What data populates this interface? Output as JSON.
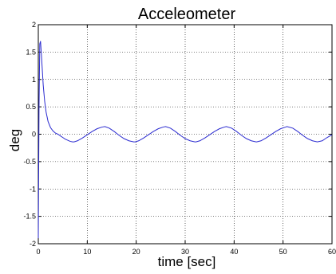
{
  "chart_data": {
    "type": "line",
    "title": "Acceleometer",
    "xlabel": "time [sec]",
    "ylabel": "deg",
    "xlim": [
      0,
      60
    ],
    "ylim": [
      -2,
      2
    ],
    "xticks": [
      "0",
      "10",
      "20",
      "30",
      "40",
      "50",
      "60"
    ],
    "yticks": [
      "2",
      "1.5",
      "1",
      "0.5",
      "0",
      "-0.5",
      "-1",
      "-1.5",
      "-2"
    ],
    "grid": true,
    "series_color": "#2b2bd0",
    "series": [
      {
        "x": [
          0,
          0.15,
          0.3,
          0.45,
          0.6,
          0.8,
          1.0,
          1.3,
          1.6,
          2.0,
          2.5,
          3.0,
          3.5,
          4.0,
          4.5,
          5.0,
          5.5,
          6.0,
          6.5,
          7.0,
          7.3,
          8.0,
          9.0,
          10.0,
          11.0,
          12.0,
          13.0,
          13.6,
          14.5,
          15.5,
          16.5,
          17.5,
          18.5,
          19.5,
          19.8,
          20.5,
          21.5,
          22.5,
          23.5,
          24.5,
          25.5,
          26.0,
          27.0,
          28.0,
          29.0,
          30.0,
          31.0,
          32.0,
          32.2,
          33.0,
          34.0,
          35.0,
          36.0,
          37.0,
          38.0,
          38.4,
          39.5,
          40.5,
          41.5,
          42.5,
          43.5,
          44.5,
          44.6,
          45.5,
          46.5,
          47.5,
          48.5,
          49.5,
          50.5,
          50.8,
          52.0,
          53.0,
          54.0,
          55.0,
          56.0,
          57.0,
          58.0,
          59.0,
          60.0
        ],
        "y": [
          -1.9,
          0.5,
          1.65,
          1.7,
          1.5,
          1.2,
          0.9,
          0.6,
          0.4,
          0.23,
          0.12,
          0.06,
          0.02,
          0.0,
          -0.03,
          -0.06,
          -0.09,
          -0.11,
          -0.13,
          -0.14,
          -0.14,
          -0.12,
          -0.07,
          -0.01,
          0.05,
          0.1,
          0.13,
          0.14,
          0.11,
          0.05,
          -0.02,
          -0.08,
          -0.12,
          -0.14,
          -0.14,
          -0.12,
          -0.07,
          -0.01,
          0.05,
          0.1,
          0.13,
          0.14,
          0.11,
          0.05,
          -0.02,
          -0.08,
          -0.12,
          -0.14,
          -0.14,
          -0.12,
          -0.07,
          -0.01,
          0.05,
          0.1,
          0.13,
          0.14,
          0.11,
          0.05,
          -0.02,
          -0.08,
          -0.12,
          -0.14,
          -0.14,
          -0.12,
          -0.07,
          -0.01,
          0.05,
          0.1,
          0.13,
          0.14,
          0.11,
          0.05,
          -0.02,
          -0.08,
          -0.12,
          -0.14,
          -0.12,
          -0.06,
          -0.01
        ]
      }
    ]
  }
}
